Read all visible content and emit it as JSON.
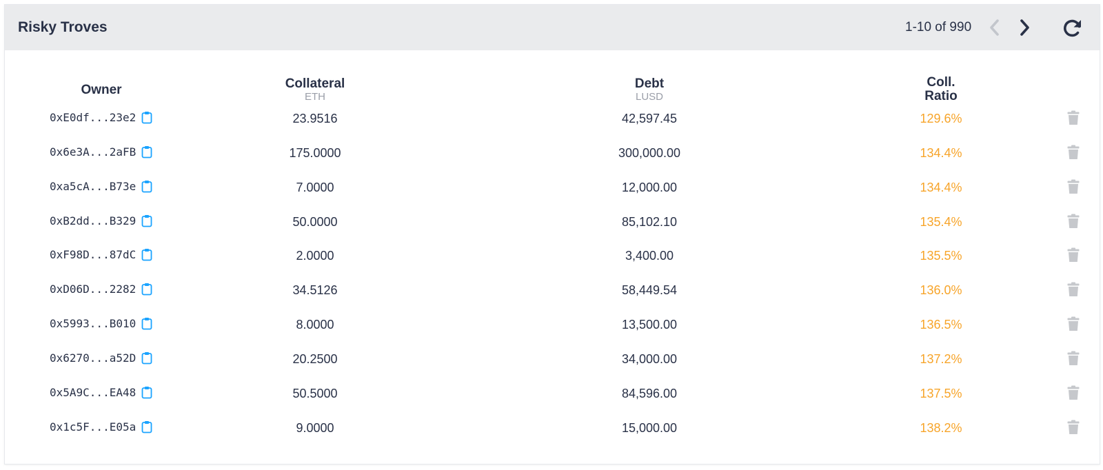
{
  "header": {
    "title": "Risky Troves",
    "pagination": "1-10 of 990",
    "prev_icon": "chevron-left-icon",
    "next_icon": "chevron-right-icon",
    "refresh_icon": "refresh-icon"
  },
  "columns": {
    "owner": "Owner",
    "collateral": "Collateral",
    "collateral_unit": "ETH",
    "debt": "Debt",
    "debt_unit": "LUSD",
    "ratio_line1": "Coll.",
    "ratio_line2": "Ratio"
  },
  "colors": {
    "ratio": "#f7a429",
    "copy_icon": "#1aa3ff",
    "trash_icon": "#c6c8cc",
    "header_bg": "#eaebed"
  },
  "rows": [
    {
      "owner": "0xE0df...23e2",
      "collateral": "23.9516",
      "debt": "42,597.45",
      "ratio": "129.6%"
    },
    {
      "owner": "0x6e3A...2aFB",
      "collateral": "175.0000",
      "debt": "300,000.00",
      "ratio": "134.4%"
    },
    {
      "owner": "0xa5cA...B73e",
      "collateral": "7.0000",
      "debt": "12,000.00",
      "ratio": "134.4%"
    },
    {
      "owner": "0xB2dd...B329",
      "collateral": "50.0000",
      "debt": "85,102.10",
      "ratio": "135.4%"
    },
    {
      "owner": "0xF98D...87dC",
      "collateral": "2.0000",
      "debt": "3,400.00",
      "ratio": "135.5%"
    },
    {
      "owner": "0xD06D...2282",
      "collateral": "34.5126",
      "debt": "58,449.54",
      "ratio": "136.0%"
    },
    {
      "owner": "0x5993...B010",
      "collateral": "8.0000",
      "debt": "13,500.00",
      "ratio": "136.5%"
    },
    {
      "owner": "0x6270...a52D",
      "collateral": "20.2500",
      "debt": "34,000.00",
      "ratio": "137.2%"
    },
    {
      "owner": "0x5A9C...EA48",
      "collateral": "50.5000",
      "debt": "84,596.00",
      "ratio": "137.5%"
    },
    {
      "owner": "0x1c5F...E05a",
      "collateral": "9.0000",
      "debt": "15,000.00",
      "ratio": "138.2%"
    }
  ]
}
